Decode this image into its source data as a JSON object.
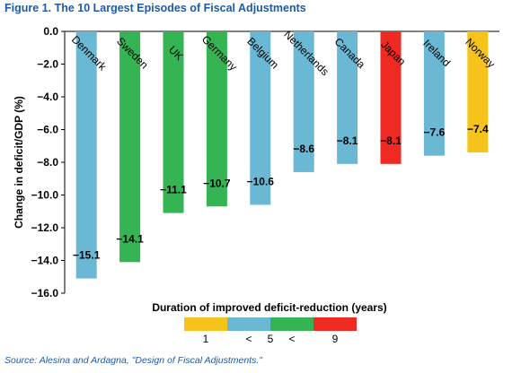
{
  "figure_title": "Figure 1. The 10 Largest Episodes of Fiscal Adjustments",
  "source": "Source: Alesina and Ardagna, \"Design of Fiscal Adjustments.\"",
  "chart_data": {
    "type": "bar",
    "title": "Figure 1. The 10 Largest Episodes of Fiscal Adjustments",
    "categories": [
      "Denmark",
      "Sweden",
      "UK",
      "Germany",
      "Belgium",
      "Netherlands",
      "Canada",
      "Japan",
      "Ireland",
      "Norway"
    ],
    "values": [
      -15.1,
      -14.1,
      -11.1,
      -10.7,
      -10.6,
      -8.6,
      -8.1,
      -8.1,
      -7.6,
      -7.4
    ],
    "value_labels": [
      "−15.1",
      "−14.1",
      "−11.1",
      "−10.7",
      "−10.6",
      "−8.6",
      "−8.1",
      "−8.1",
      "−7.6",
      "−7.4"
    ],
    "duration_class": [
      2,
      3,
      3,
      3,
      2,
      2,
      2,
      4,
      2,
      1
    ],
    "ylabel": "Change in deficit/GDP (%)",
    "xlabel": "Duration of improved deficit-reduction (years)",
    "ylim": [
      -16,
      0
    ],
    "yticks": [
      0,
      -2,
      -4,
      -6,
      -8,
      -10,
      -12,
      -14,
      -16
    ],
    "ytick_labels": [
      "0.0",
      "−2.0",
      "−4.0",
      "−6.0",
      "−8.0",
      "−10.0",
      "−12.0",
      "−14.0",
      "−16.0"
    ],
    "grid": false,
    "legend": {
      "placement": "bottom",
      "colors": [
        "#f6c21c",
        "#6bb8d4",
        "#35b454",
        "#ee2a22"
      ],
      "labels": [
        {
          "text": "1",
          "slot": 0.5
        },
        {
          "text": "<",
          "slot": 1.5
        },
        {
          "text": "5",
          "slot": 2.0
        },
        {
          "text": "<",
          "slot": 2.5
        },
        {
          "text": "9",
          "slot": 3.5
        }
      ]
    },
    "colors": {
      "1": "#f6c21c",
      "2": "#6bb8d4",
      "3": "#35b454",
      "4": "#ee2a22"
    }
  }
}
